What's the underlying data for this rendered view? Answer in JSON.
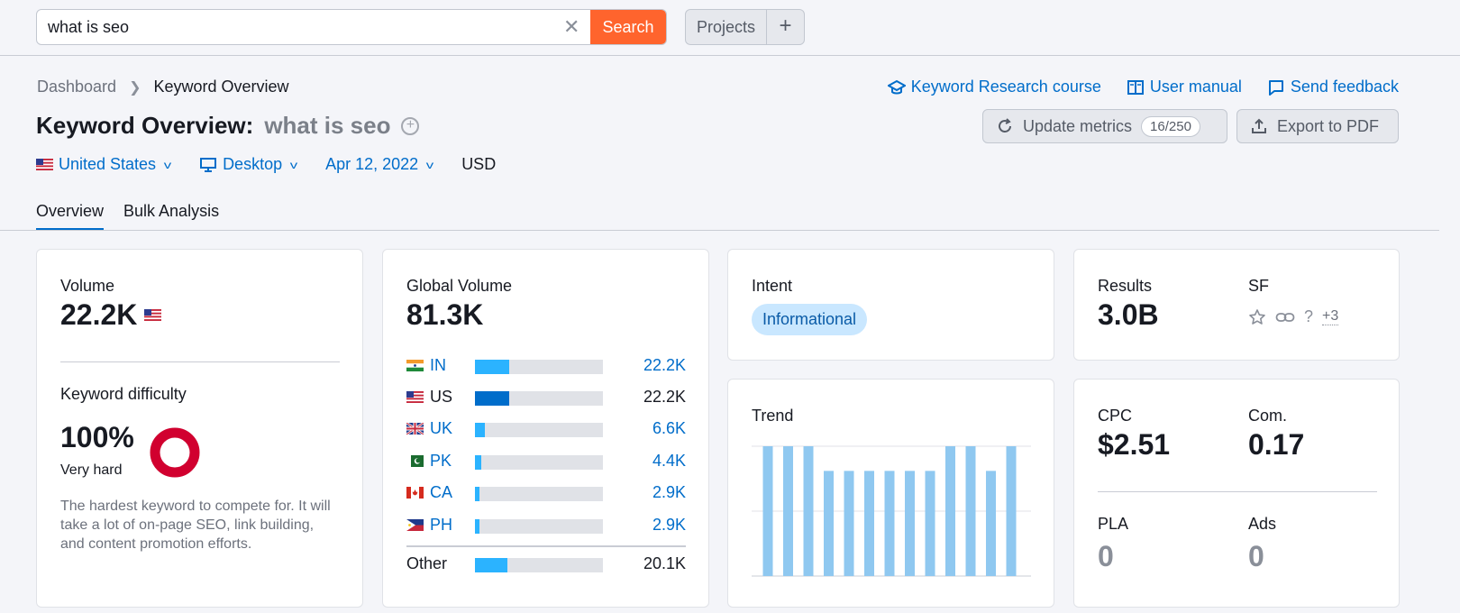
{
  "search": {
    "value": "what is seo",
    "button": "Search"
  },
  "projects": {
    "label": "Projects",
    "plus": "+"
  },
  "breadcrumb": {
    "root": "Dashboard",
    "current": "Keyword Overview"
  },
  "top_links": [
    {
      "label": "Keyword Research course",
      "icon": "graduation-cap-icon"
    },
    {
      "label": "User manual",
      "icon": "book-icon"
    },
    {
      "label": "Send feedback",
      "icon": "message-icon"
    }
  ],
  "title": {
    "prefix": "Keyword Overview:",
    "keyword": "what is seo"
  },
  "actions": {
    "update_label": "Update metrics",
    "update_count": "16/250",
    "export_label": "Export to PDF"
  },
  "filters": {
    "country": "United States",
    "device": "Desktop",
    "date": "Apr 12, 2022",
    "currency": "USD"
  },
  "tabs": [
    "Overview",
    "Bulk Analysis"
  ],
  "volume": {
    "label": "Volume",
    "value": "22.2K"
  },
  "difficulty": {
    "label": "Keyword difficulty",
    "value": "100%",
    "level": "Very hard",
    "percent": 100,
    "description": "The hardest keyword to compete for. It will take a lot of on-page SEO, link building, and content promotion efforts."
  },
  "global_volume": {
    "label": "Global Volume",
    "value": "81.3K",
    "rows": [
      {
        "code": "IN",
        "value": "22.2K",
        "fill": 0.27,
        "link": true
      },
      {
        "code": "US",
        "value": "22.2K",
        "fill": 0.27,
        "link": false
      },
      {
        "code": "UK",
        "value": "6.6K",
        "fill": 0.08,
        "link": true
      },
      {
        "code": "PK",
        "value": "4.4K",
        "fill": 0.05,
        "link": true
      },
      {
        "code": "CA",
        "value": "2.9K",
        "fill": 0.035,
        "link": true
      },
      {
        "code": "PH",
        "value": "2.9K",
        "fill": 0.035,
        "link": true
      }
    ],
    "other": {
      "label": "Other",
      "value": "20.1K",
      "fill": 0.25
    }
  },
  "intent": {
    "label": "Intent",
    "value": "Informational"
  },
  "trend": {
    "label": "Trend",
    "values": [
      1.0,
      1.0,
      1.0,
      0.81,
      0.81,
      0.81,
      0.81,
      0.81,
      0.81,
      1.0,
      1.0,
      0.81,
      1.0
    ]
  },
  "results": {
    "label": "Results",
    "value": "3.0B",
    "sf_label": "SF",
    "sf_more": "+3"
  },
  "cpc": {
    "label": "CPC",
    "value": "$2.51"
  },
  "com": {
    "label": "Com.",
    "value": "0.17"
  },
  "pla": {
    "label": "PLA",
    "value": "0"
  },
  "ads": {
    "label": "Ads",
    "value": "0"
  },
  "colors": {
    "accent": "#006dca",
    "search": "#ff642d",
    "difficulty": "#d1002f",
    "bar": "#2bb3ff",
    "bar_us": "#006dca",
    "trend": "#8fc8f0"
  }
}
